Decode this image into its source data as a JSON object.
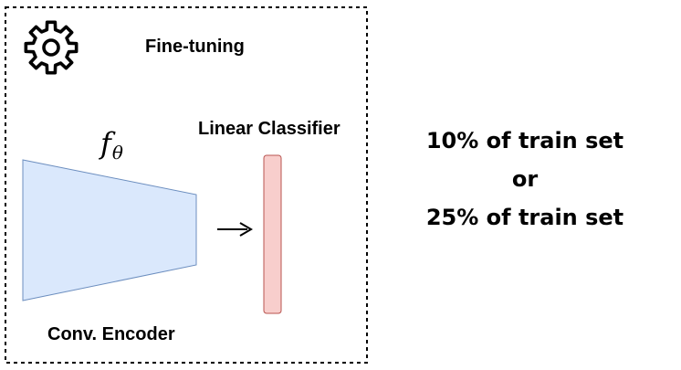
{
  "diagram": {
    "title": "Fine-tuning",
    "function_symbol": "f",
    "function_subscript": "θ",
    "classifier_label": "Linear Classifier",
    "encoder_label": "Conv. Encoder",
    "notes": [
      "10% of train set",
      "or",
      "25% of train set"
    ],
    "icons": {
      "settings": "gear-icon",
      "flow": "arrow-right-icon"
    },
    "colors": {
      "encoder_fill": "#dae8fc",
      "encoder_stroke": "#6c8ebf",
      "classifier_fill": "#f8cecc",
      "classifier_stroke": "#b85450",
      "frame_stroke": "#000000"
    }
  }
}
